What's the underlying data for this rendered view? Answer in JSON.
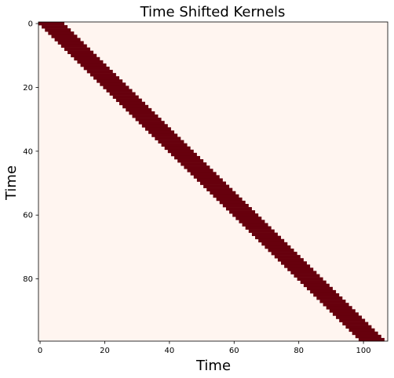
{
  "chart_data": {
    "type": "heatmap",
    "title": "Time Shifted Kernels",
    "xlabel": "Time",
    "ylabel": "Time",
    "rows": 100,
    "cols": 108,
    "xlim": [
      -0.5,
      107.5
    ],
    "ylim": [
      99.5,
      -0.5
    ],
    "y_axis_inverted": true,
    "colormap": "Reds",
    "colors": {
      "low": "#fff5f0",
      "high": "#67000d"
    },
    "kernel": {
      "width": 8,
      "value": 1,
      "offset_per_row": 1
    },
    "background_value": 0,
    "x_ticks": [
      0,
      20,
      40,
      60,
      80,
      100
    ],
    "y_ticks": [
      0,
      20,
      40,
      60,
      80
    ],
    "x_tick_labels": [
      "0",
      "20",
      "40",
      "60",
      "80",
      "100"
    ],
    "y_tick_labels": [
      "0",
      "20",
      "40",
      "60",
      "80"
    ],
    "grid": false
  }
}
